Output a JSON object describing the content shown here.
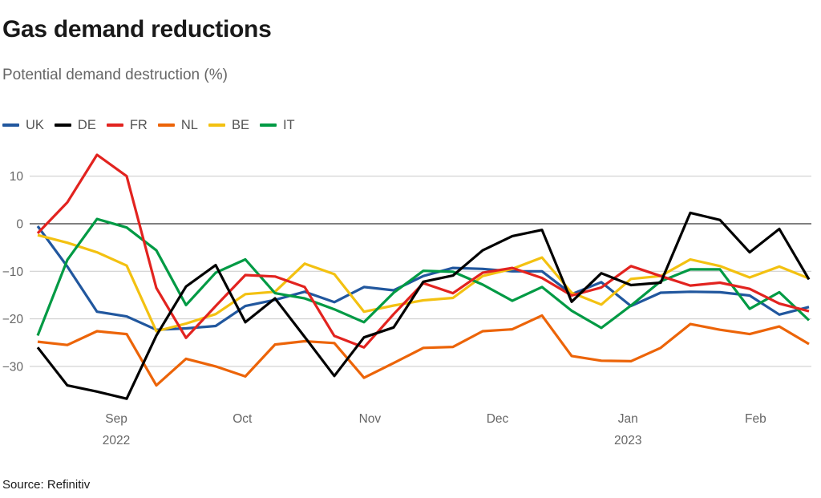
{
  "header": {
    "title": "Gas demand reductions",
    "subtitle": "Potential demand destruction (%)"
  },
  "source": "Source: Refinitiv",
  "colors": {
    "uk_blue": "#21579e",
    "de_black": "#000000",
    "fr_red": "#e2231f",
    "nl_orange": "#ec6408",
    "be_yellow": "#f3c111",
    "it_green": "#009a44",
    "gridline": "#c9c9c9",
    "zero_line": "#000000",
    "axis_text": "#666666",
    "title_text": "#191919"
  },
  "chart_data": {
    "type": "line",
    "title": "Gas demand reductions",
    "subtitle": "Potential demand destruction (%)",
    "xlabel": "",
    "ylabel": "Potential demand destruction (%)",
    "x_unit": "weekly points, late Aug 2022 - Feb 2023",
    "ylim": [
      -38,
      15.5
    ],
    "y_ticks": [
      10,
      0,
      -10,
      -20,
      -30
    ],
    "grid": "horizontal",
    "zero_line": true,
    "legend_position": "top-left",
    "x_ticks": [
      {
        "label": "Sep",
        "index": 2.65,
        "year": "2022"
      },
      {
        "label": "Oct",
        "index": 6.9,
        "year": ""
      },
      {
        "label": "Nov",
        "index": 11.2,
        "year": ""
      },
      {
        "label": "Dec",
        "index": 15.5,
        "year": ""
      },
      {
        "label": "Jan",
        "index": 19.9,
        "year": "2023"
      },
      {
        "label": "Feb",
        "index": 24.2,
        "year": ""
      }
    ],
    "series": [
      {
        "name": "UK",
        "color": "#21579e",
        "values": [
          -0.5,
          -9,
          -18.5,
          -19.5,
          -22.3,
          -22,
          -21.5,
          -17.3,
          -16,
          -14.3,
          -16.5,
          -13.3,
          -14,
          -11,
          -9.3,
          -9.5,
          -10,
          -10,
          -14.8,
          -12.3,
          -17.3,
          -14.5,
          -14.3,
          -14.4,
          -15.1,
          -19.1,
          -17.5
        ]
      },
      {
        "name": "DE",
        "color": "#000000",
        "values": [
          -26,
          -34,
          -35.3,
          -36.8,
          -23.5,
          -13.2,
          -8.7,
          -20.7,
          -15.7,
          -23.8,
          -32,
          -23.9,
          -21.8,
          -12.2,
          -10.9,
          -5.6,
          -2.6,
          -1.3,
          -16.4,
          -10.4,
          -12.9,
          -12.4,
          2.3,
          0.8,
          -6,
          -1.1,
          -11.7
        ]
      },
      {
        "name": "FR",
        "color": "#e2231f",
        "values": [
          -2,
          4.5,
          14.5,
          10,
          -13.5,
          -24,
          -17.3,
          -10.8,
          -11.1,
          -13.3,
          -23.6,
          -26,
          -19,
          -12.5,
          -14.6,
          -10.3,
          -9.3,
          -11.4,
          -15.1,
          -13.4,
          -8.9,
          -11,
          -13,
          -12.4,
          -13.7,
          -16.8,
          -18.4
        ]
      },
      {
        "name": "NL",
        "color": "#ec6408",
        "values": [
          -24.8,
          -25.5,
          -22.6,
          -23.2,
          -34,
          -28.4,
          -30,
          -32.1,
          -25.4,
          -24.7,
          -25.1,
          -32.4,
          -29.3,
          -26.1,
          -25.9,
          -22.6,
          -22.2,
          -19.3,
          -27.8,
          -28.8,
          -28.9,
          -26.1,
          -21.1,
          -22.3,
          -23.2,
          -21.6,
          -25.3
        ]
      },
      {
        "name": "BE",
        "color": "#f3c111",
        "values": [
          -2.4,
          -4,
          -6,
          -8.8,
          -22.6,
          -21,
          -19,
          -14.8,
          -14.3,
          -8.4,
          -10.6,
          -18.5,
          -17.2,
          -16.1,
          -15.6,
          -11,
          -9.5,
          -7.1,
          -14.5,
          -17,
          -11.6,
          -11,
          -7.5,
          -8.9,
          -11.3,
          -9,
          -11.5
        ]
      },
      {
        "name": "IT",
        "color": "#009a44",
        "values": [
          -23.5,
          -7.6,
          1,
          -0.8,
          -5.6,
          -17.1,
          -10.3,
          -7.5,
          -14.6,
          -15.7,
          -18,
          -20.7,
          -14.5,
          -9.9,
          -10.1,
          -12.8,
          -16.2,
          -13.3,
          -18.3,
          -21.9,
          -17.2,
          -12.1,
          -9.6,
          -9.6,
          -17.9,
          -14.4,
          -20.3
        ]
      }
    ]
  }
}
